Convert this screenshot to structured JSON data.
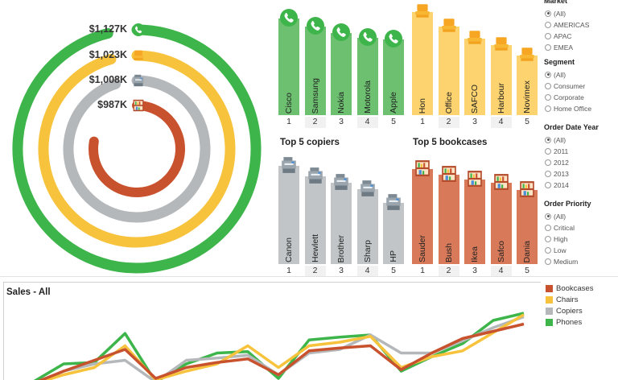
{
  "colors": {
    "Phones": "#3db54a",
    "Chairs": "#f7c33c",
    "Copiers": "#b5b8ba",
    "Bookcases": "#c8522e",
    "phones_bar": "#6cc070",
    "chairs_bar": "#fcd36f",
    "copiers_bar": "#c2c5c7",
    "bookcases_bar": "#d87a5a"
  },
  "radial": {
    "labels": [
      {
        "text": "$1,127K",
        "icon": "phone-icon",
        "category": "Phones"
      },
      {
        "text": "$1,023K",
        "icon": "chair-icon",
        "category": "Chairs"
      },
      {
        "text": "$1,008K",
        "icon": "copier-icon",
        "category": "Copiers"
      },
      {
        "text": "$987K",
        "icon": "bookcase-icon",
        "category": "Bookcases"
      }
    ]
  },
  "charts": {
    "phones": {
      "title": "",
      "bars": [
        "Cisco",
        "Samsung",
        "Nokia",
        "Motorola",
        "Apple"
      ],
      "ranks": [
        "1",
        "2",
        "3",
        "4",
        "5"
      ],
      "values": [
        100,
        92,
        85,
        80,
        78
      ],
      "icon": "phone-icon"
    },
    "chairs": {
      "title": "",
      "bars": [
        "Hon",
        "Office",
        "SAFCO",
        "Harbour",
        "Novimex"
      ],
      "ranks": [
        "1",
        "2",
        "3",
        "4",
        "5"
      ],
      "values": [
        100,
        86,
        74,
        68,
        58
      ],
      "icon": "chair-icon"
    },
    "copiers": {
      "title": "Top 5 copiers",
      "bars": [
        "Canon",
        "Hewlett",
        "Brother",
        "Sharp",
        "HP"
      ],
      "ranks": [
        "1",
        "2",
        "3",
        "4",
        "5"
      ],
      "values": [
        100,
        89,
        83,
        76,
        62
      ],
      "icon": "copier-icon"
    },
    "bookcases": {
      "title": "Top 5 bookcases",
      "bars": [
        "Sauder",
        "Bush",
        "Ikea",
        "Safco",
        "Dania"
      ],
      "ranks": [
        "1",
        "2",
        "3",
        "4",
        "5"
      ],
      "values": [
        100,
        94,
        89,
        86,
        78
      ],
      "icon": "bookcase-icon"
    }
  },
  "filters": [
    {
      "title": "Market",
      "options": [
        "(All)",
        "AMERICAS",
        "APAC",
        "EMEA"
      ],
      "selected": 0
    },
    {
      "title": "Segment",
      "options": [
        "(All)",
        "Consumer",
        "Corporate",
        "Home Office"
      ],
      "selected": 0
    },
    {
      "title": "Order Date Year",
      "options": [
        "(All)",
        "2011",
        "2012",
        "2013",
        "2014"
      ],
      "selected": 0
    },
    {
      "title": "Order Priority",
      "options": [
        "(All)",
        "Critical",
        "High",
        "Low",
        "Medium"
      ],
      "selected": 0
    }
  ],
  "sales": {
    "title": "Sales - All",
    "legend": [
      "Bookcases",
      "Chairs",
      "Copiers",
      "Phones"
    ],
    "series": [
      {
        "name": "Phones",
        "values": [
          0.05,
          0.3,
          0.32,
          0.72,
          0.05,
          0.3,
          0.45,
          0.47,
          0.1,
          0.63,
          0.67,
          0.7,
          0.2,
          0.4,
          0.58,
          0.9,
          1.0
        ]
      },
      {
        "name": "Copiers",
        "values": [
          0.0,
          0.2,
          0.3,
          0.35,
          0.05,
          0.35,
          0.38,
          0.42,
          0.15,
          0.45,
          0.5,
          0.7,
          0.45,
          0.45,
          0.62,
          0.8,
          0.95
        ]
      },
      {
        "name": "Chairs",
        "values": [
          0.02,
          0.15,
          0.25,
          0.55,
          0.08,
          0.2,
          0.3,
          0.55,
          0.25,
          0.55,
          0.6,
          0.68,
          0.25,
          0.4,
          0.48,
          0.73,
          0.98
        ]
      },
      {
        "name": "Bookcases",
        "values": [
          0.03,
          0.2,
          0.35,
          0.5,
          0.1,
          0.25,
          0.32,
          0.37,
          0.15,
          0.48,
          0.52,
          0.55,
          0.22,
          0.45,
          0.65,
          0.75,
          0.85
        ]
      }
    ]
  }
}
